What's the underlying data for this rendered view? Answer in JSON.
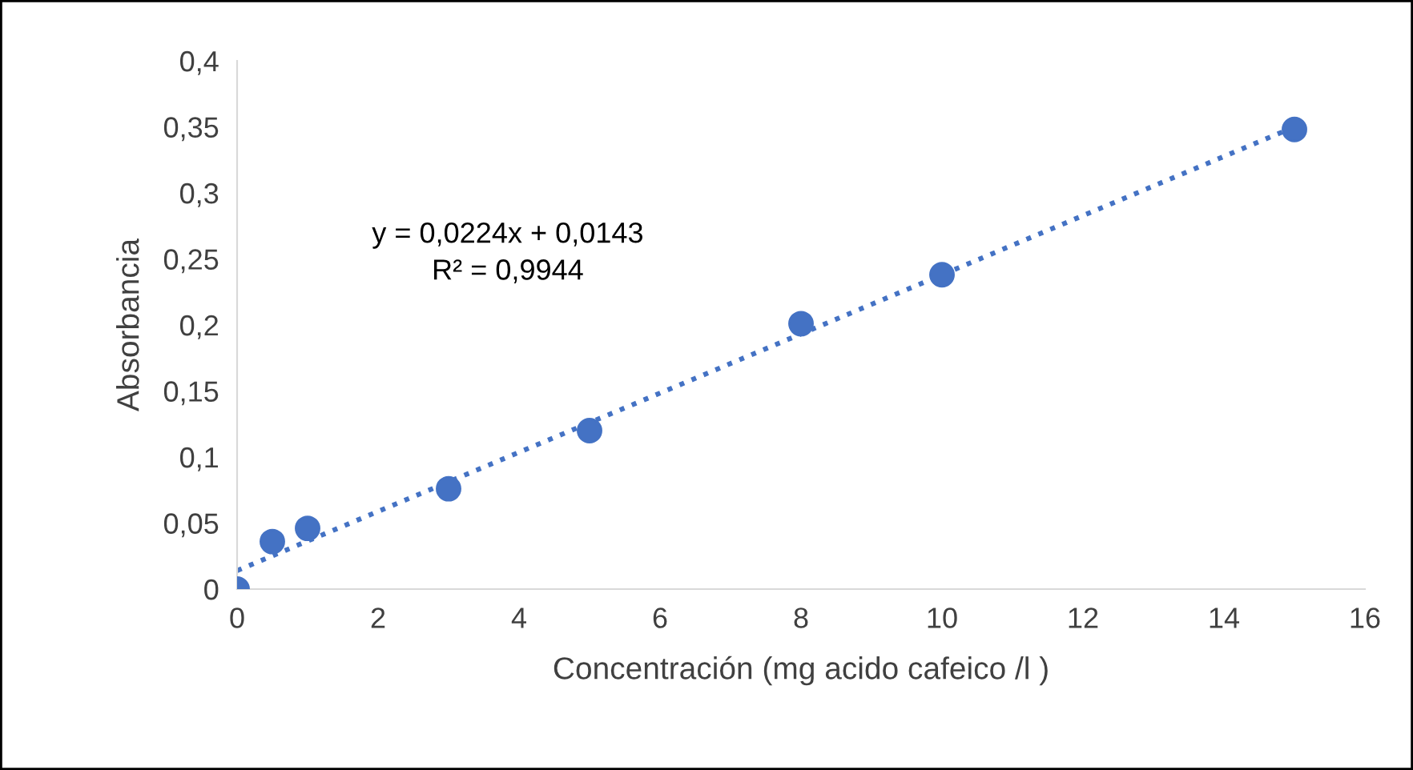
{
  "chart_data": {
    "type": "scatter",
    "xlabel": "Concentración (mg acido cafeico /l )",
    "ylabel": "Absorbancia",
    "x": [
      0,
      0.5,
      1,
      3,
      5,
      8,
      10,
      15
    ],
    "series": [
      {
        "type": "scatter",
        "color": "#4472c4",
        "marker": "circle",
        "values": [
          0,
          0.036,
          0.046,
          0.076,
          0.12,
          0.201,
          0.238,
          0.348
        ]
      },
      {
        "type": "line",
        "color": "#4472c4",
        "marker": "none",
        "line_style": "dotted",
        "x": [
          0,
          15
        ],
        "values": [
          0.014,
          0.35
        ]
      }
    ],
    "annotations": [
      "y = 0,0224x + 0,0143",
      "R² = 0,9944"
    ],
    "xlim": [
      0,
      16
    ],
    "xticks": [
      0,
      2,
      4,
      6,
      8,
      10,
      12,
      14,
      16
    ],
    "ylim": [
      0,
      0.4
    ],
    "yticks": [
      {
        "value": 0,
        "label": "0"
      },
      {
        "value": 0.05,
        "label": "0,05"
      },
      {
        "value": 0.1,
        "label": "0,1"
      },
      {
        "value": 0.15,
        "label": "0,15"
      },
      {
        "value": 0.2,
        "label": "0,2"
      },
      {
        "value": 0.25,
        "label": "0,25"
      },
      {
        "value": 0.3,
        "label": "0,3"
      },
      {
        "value": 0.35,
        "label": "0,35"
      },
      {
        "value": 0.4,
        "label": "0,4"
      }
    ],
    "grid": false,
    "legend": false
  }
}
